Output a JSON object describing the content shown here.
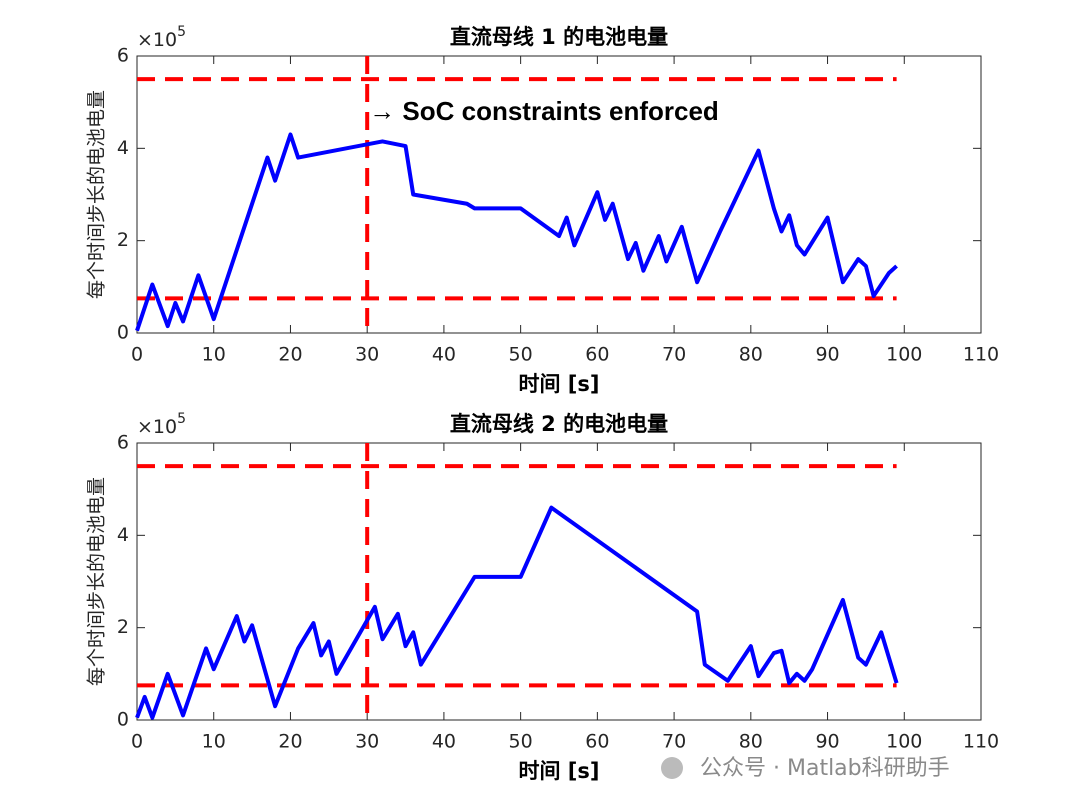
{
  "chart_data": [
    {
      "type": "line",
      "title": "直流母线 1 的电池电量",
      "xlabel": "时间 [s]",
      "ylabel": "每个时间步长的电池电量",
      "y_multiplier": {
        "base": "×10",
        "exponent": "5"
      },
      "annotation": "→ SoC constraints enforced",
      "xlim": [
        0,
        110
      ],
      "xticks": [
        0,
        10,
        20,
        30,
        40,
        50,
        60,
        70,
        80,
        90,
        100,
        110
      ],
      "ylim": [
        0,
        6
      ],
      "yticks": [
        0,
        2,
        4,
        6
      ],
      "hlines": [
        5.5,
        0.75
      ],
      "vline": 30,
      "ref_color": "#ff0000",
      "x": [
        0,
        2,
        4,
        5,
        6,
        8,
        10,
        17,
        18,
        20,
        21,
        32,
        35,
        36,
        43,
        44,
        50,
        55,
        56,
        57,
        60,
        61,
        62,
        64,
        65,
        66,
        68,
        69,
        71,
        73,
        76,
        81,
        83,
        84,
        85,
        86,
        87,
        90,
        92,
        94,
        95,
        96,
        98,
        99
      ],
      "series": [
        {
          "color": "#0000ff",
          "values": [
            0.05,
            1.05,
            0.15,
            0.65,
            0.25,
            1.25,
            0.3,
            3.8,
            3.3,
            4.3,
            3.8,
            4.15,
            4.05,
            3.0,
            2.8,
            2.7,
            2.7,
            2.1,
            2.5,
            1.9,
            3.05,
            2.45,
            2.8,
            1.6,
            1.95,
            1.35,
            2.1,
            1.55,
            2.3,
            1.1,
            2.2,
            3.95,
            2.7,
            2.2,
            2.55,
            1.9,
            1.7,
            2.5,
            1.1,
            1.6,
            1.45,
            0.8,
            1.3,
            1.45
          ]
        }
      ]
    },
    {
      "type": "line",
      "title": "直流母线 2 的电池电量",
      "xlabel": "时间 [s]",
      "ylabel": "每个时间步长的电池电量",
      "y_multiplier": {
        "base": "×10",
        "exponent": "5"
      },
      "xlim": [
        0,
        110
      ],
      "xticks": [
        0,
        10,
        20,
        30,
        40,
        50,
        60,
        70,
        80,
        90,
        100,
        110
      ],
      "ylim": [
        0,
        6
      ],
      "yticks": [
        0,
        2,
        4,
        6
      ],
      "hlines": [
        5.5,
        0.75
      ],
      "vline": 30,
      "ref_color": "#ff0000",
      "x": [
        0,
        1,
        2,
        4,
        6,
        9,
        10,
        13,
        14,
        15,
        18,
        21,
        23,
        24,
        25,
        26,
        31,
        32,
        34,
        35,
        36,
        37,
        44,
        50,
        54,
        73,
        74,
        77,
        80,
        81,
        83,
        84,
        85,
        86,
        87,
        88,
        92,
        94,
        95,
        97,
        99
      ],
      "series": [
        {
          "color": "#0000ff",
          "values": [
            0.05,
            0.5,
            0.05,
            1.0,
            0.1,
            1.55,
            1.1,
            2.25,
            1.7,
            2.05,
            0.3,
            1.55,
            2.1,
            1.4,
            1.7,
            1.0,
            2.45,
            1.75,
            2.3,
            1.6,
            1.9,
            1.2,
            3.1,
            3.1,
            4.6,
            2.35,
            1.2,
            0.85,
            1.6,
            0.95,
            1.45,
            1.5,
            0.8,
            1.0,
            0.85,
            1.1,
            2.6,
            1.35,
            1.2,
            1.9,
            0.8
          ]
        }
      ]
    }
  ],
  "watermark": "公众号 · Matlab科研助手"
}
